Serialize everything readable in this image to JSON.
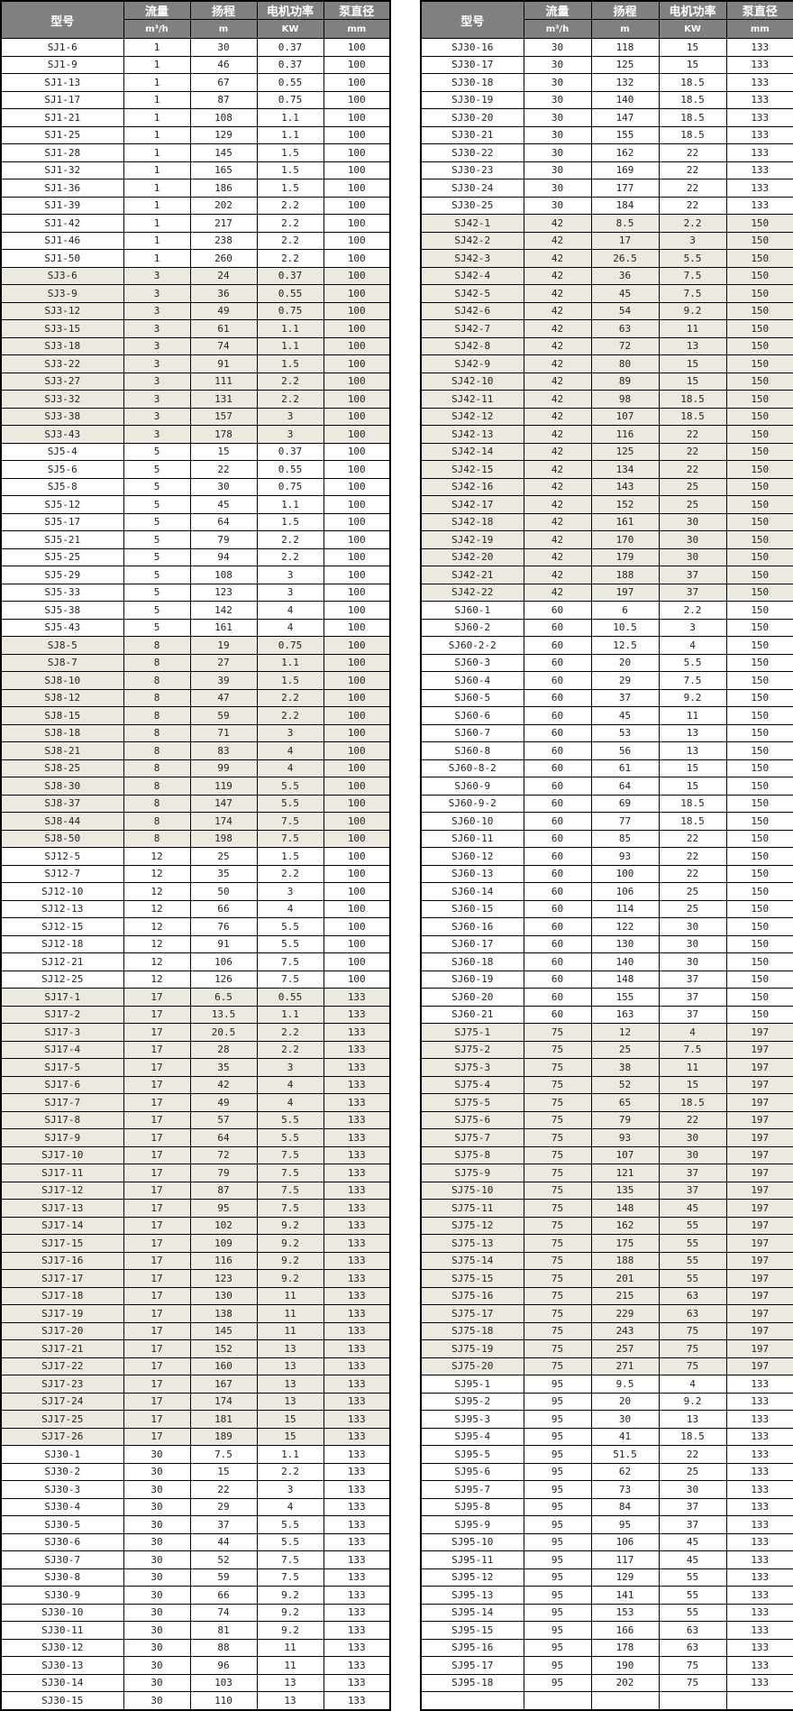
{
  "headers": {
    "model": "型号",
    "flow": "流量",
    "head": "扬程",
    "power": "电机功率",
    "diameter": "泵直径",
    "flow_unit": "m³/h",
    "head_unit": "m",
    "power_unit": "KW",
    "diameter_unit": "mm"
  },
  "colors": {
    "header_bg": "#808080",
    "highlight_row": "#ECEAE0",
    "plain_row": "#FFFFFF"
  },
  "highlight_series": [
    "SJ3",
    "SJ8",
    "SJ17",
    "SJ42",
    "SJ75"
  ],
  "left_rows": [
    [
      "SJ1-6",
      "1",
      "30",
      "0.37",
      "100"
    ],
    [
      "SJ1-9",
      "1",
      "46",
      "0.37",
      "100"
    ],
    [
      "SJ1-13",
      "1",
      "67",
      "0.55",
      "100"
    ],
    [
      "SJ1-17",
      "1",
      "87",
      "0.75",
      "100"
    ],
    [
      "SJ1-21",
      "1",
      "108",
      "1.1",
      "100"
    ],
    [
      "SJ1-25",
      "1",
      "129",
      "1.1",
      "100"
    ],
    [
      "SJ1-28",
      "1",
      "145",
      "1.5",
      "100"
    ],
    [
      "SJ1-32",
      "1",
      "165",
      "1.5",
      "100"
    ],
    [
      "SJ1-36",
      "1",
      "186",
      "1.5",
      "100"
    ],
    [
      "SJ1-39",
      "1",
      "202",
      "2.2",
      "100"
    ],
    [
      "SJ1-42",
      "1",
      "217",
      "2.2",
      "100"
    ],
    [
      "SJ1-46",
      "1",
      "238",
      "2.2",
      "100"
    ],
    [
      "SJ1-50",
      "1",
      "260",
      "2.2",
      "100"
    ],
    [
      "SJ3-6",
      "3",
      "24",
      "0.37",
      "100"
    ],
    [
      "SJ3-9",
      "3",
      "36",
      "0.55",
      "100"
    ],
    [
      "SJ3-12",
      "3",
      "49",
      "0.75",
      "100"
    ],
    [
      "SJ3-15",
      "3",
      "61",
      "1.1",
      "100"
    ],
    [
      "SJ3-18",
      "3",
      "74",
      "1.1",
      "100"
    ],
    [
      "SJ3-22",
      "3",
      "91",
      "1.5",
      "100"
    ],
    [
      "SJ3-27",
      "3",
      "111",
      "2.2",
      "100"
    ],
    [
      "SJ3-32",
      "3",
      "131",
      "2.2",
      "100"
    ],
    [
      "SJ3-38",
      "3",
      "157",
      "3",
      "100"
    ],
    [
      "SJ3-43",
      "3",
      "178",
      "3",
      "100"
    ],
    [
      "SJ5-4",
      "5",
      "15",
      "0.37",
      "100"
    ],
    [
      "SJ5-6",
      "5",
      "22",
      "0.55",
      "100"
    ],
    [
      "SJ5-8",
      "5",
      "30",
      "0.75",
      "100"
    ],
    [
      "SJ5-12",
      "5",
      "45",
      "1.1",
      "100"
    ],
    [
      "SJ5-17",
      "5",
      "64",
      "1.5",
      "100"
    ],
    [
      "SJ5-21",
      "5",
      "79",
      "2.2",
      "100"
    ],
    [
      "SJ5-25",
      "5",
      "94",
      "2.2",
      "100"
    ],
    [
      "SJ5-29",
      "5",
      "108",
      "3",
      "100"
    ],
    [
      "SJ5-33",
      "5",
      "123",
      "3",
      "100"
    ],
    [
      "SJ5-38",
      "5",
      "142",
      "4",
      "100"
    ],
    [
      "SJ5-43",
      "5",
      "161",
      "4",
      "100"
    ],
    [
      "SJ8-5",
      "8",
      "19",
      "0.75",
      "100"
    ],
    [
      "SJ8-7",
      "8",
      "27",
      "1.1",
      "100"
    ],
    [
      "SJ8-10",
      "8",
      "39",
      "1.5",
      "100"
    ],
    [
      "SJ8-12",
      "8",
      "47",
      "2.2",
      "100"
    ],
    [
      "SJ8-15",
      "8",
      "59",
      "2.2",
      "100"
    ],
    [
      "SJ8-18",
      "8",
      "71",
      "3",
      "100"
    ],
    [
      "SJ8-21",
      "8",
      "83",
      "4",
      "100"
    ],
    [
      "SJ8-25",
      "8",
      "99",
      "4",
      "100"
    ],
    [
      "SJ8-30",
      "8",
      "119",
      "5.5",
      "100"
    ],
    [
      "SJ8-37",
      "8",
      "147",
      "5.5",
      "100"
    ],
    [
      "SJ8-44",
      "8",
      "174",
      "7.5",
      "100"
    ],
    [
      "SJ8-50",
      "8",
      "198",
      "7.5",
      "100"
    ],
    [
      "SJ12-5",
      "12",
      "25",
      "1.5",
      "100"
    ],
    [
      "SJ12-7",
      "12",
      "35",
      "2.2",
      "100"
    ],
    [
      "SJ12-10",
      "12",
      "50",
      "3",
      "100"
    ],
    [
      "SJ12-13",
      "12",
      "66",
      "4",
      "100"
    ],
    [
      "SJ12-15",
      "12",
      "76",
      "5.5",
      "100"
    ],
    [
      "SJ12-18",
      "12",
      "91",
      "5.5",
      "100"
    ],
    [
      "SJ12-21",
      "12",
      "106",
      "7.5",
      "100"
    ],
    [
      "SJ12-25",
      "12",
      "126",
      "7.5",
      "100"
    ],
    [
      "SJ17-1",
      "17",
      "6.5",
      "0.55",
      "133"
    ],
    [
      "SJ17-2",
      "17",
      "13.5",
      "1.1",
      "133"
    ],
    [
      "SJ17-3",
      "17",
      "20.5",
      "2.2",
      "133"
    ],
    [
      "SJ17-4",
      "17",
      "28",
      "2.2",
      "133"
    ],
    [
      "SJ17-5",
      "17",
      "35",
      "3",
      "133"
    ],
    [
      "SJ17-6",
      "17",
      "42",
      "4",
      "133"
    ],
    [
      "SJ17-7",
      "17",
      "49",
      "4",
      "133"
    ],
    [
      "SJ17-8",
      "17",
      "57",
      "5.5",
      "133"
    ],
    [
      "SJ17-9",
      "17",
      "64",
      "5.5",
      "133"
    ],
    [
      "SJ17-10",
      "17",
      "72",
      "7.5",
      "133"
    ],
    [
      "SJ17-11",
      "17",
      "79",
      "7.5",
      "133"
    ],
    [
      "SJ17-12",
      "17",
      "87",
      "7.5",
      "133"
    ],
    [
      "SJ17-13",
      "17",
      "95",
      "7.5",
      "133"
    ],
    [
      "SJ17-14",
      "17",
      "102",
      "9.2",
      "133"
    ],
    [
      "SJ17-15",
      "17",
      "109",
      "9.2",
      "133"
    ],
    [
      "SJ17-16",
      "17",
      "116",
      "9.2",
      "133"
    ],
    [
      "SJ17-17",
      "17",
      "123",
      "9.2",
      "133"
    ],
    [
      "SJ17-18",
      "17",
      "130",
      "11",
      "133"
    ],
    [
      "SJ17-19",
      "17",
      "138",
      "11",
      "133"
    ],
    [
      "SJ17-20",
      "17",
      "145",
      "11",
      "133"
    ],
    [
      "SJ17-21",
      "17",
      "152",
      "13",
      "133"
    ],
    [
      "SJ17-22",
      "17",
      "160",
      "13",
      "133"
    ],
    [
      "SJ17-23",
      "17",
      "167",
      "13",
      "133"
    ],
    [
      "SJ17-24",
      "17",
      "174",
      "13",
      "133"
    ],
    [
      "SJ17-25",
      "17",
      "181",
      "15",
      "133"
    ],
    [
      "SJ17-26",
      "17",
      "189",
      "15",
      "133"
    ],
    [
      "SJ30-1",
      "30",
      "7.5",
      "1.1",
      "133"
    ],
    [
      "SJ30-2",
      "30",
      "15",
      "2.2",
      "133"
    ],
    [
      "SJ30-3",
      "30",
      "22",
      "3",
      "133"
    ],
    [
      "SJ30-4",
      "30",
      "29",
      "4",
      "133"
    ],
    [
      "SJ30-5",
      "30",
      "37",
      "5.5",
      "133"
    ],
    [
      "SJ30-6",
      "30",
      "44",
      "5.5",
      "133"
    ],
    [
      "SJ30-7",
      "30",
      "52",
      "7.5",
      "133"
    ],
    [
      "SJ30-8",
      "30",
      "59",
      "7.5",
      "133"
    ],
    [
      "SJ30-9",
      "30",
      "66",
      "9.2",
      "133"
    ],
    [
      "SJ30-10",
      "30",
      "74",
      "9.2",
      "133"
    ],
    [
      "SJ30-11",
      "30",
      "81",
      "9.2",
      "133"
    ],
    [
      "SJ30-12",
      "30",
      "88",
      "11",
      "133"
    ],
    [
      "SJ30-13",
      "30",
      "96",
      "11",
      "133"
    ],
    [
      "SJ30-14",
      "30",
      "103",
      "13",
      "133"
    ],
    [
      "SJ30-15",
      "30",
      "110",
      "13",
      "133"
    ]
  ],
  "right_rows": [
    [
      "SJ30-16",
      "30",
      "118",
      "15",
      "133"
    ],
    [
      "SJ30-17",
      "30",
      "125",
      "15",
      "133"
    ],
    [
      "SJ30-18",
      "30",
      "132",
      "18.5",
      "133"
    ],
    [
      "SJ30-19",
      "30",
      "140",
      "18.5",
      "133"
    ],
    [
      "SJ30-20",
      "30",
      "147",
      "18.5",
      "133"
    ],
    [
      "SJ30-21",
      "30",
      "155",
      "18.5",
      "133"
    ],
    [
      "SJ30-22",
      "30",
      "162",
      "22",
      "133"
    ],
    [
      "SJ30-23",
      "30",
      "169",
      "22",
      "133"
    ],
    [
      "SJ30-24",
      "30",
      "177",
      "22",
      "133"
    ],
    [
      "SJ30-25",
      "30",
      "184",
      "22",
      "133"
    ],
    [
      "SJ42-1",
      "42",
      "8.5",
      "2.2",
      "150"
    ],
    [
      "SJ42-2",
      "42",
      "17",
      "3",
      "150"
    ],
    [
      "SJ42-3",
      "42",
      "26.5",
      "5.5",
      "150"
    ],
    [
      "SJ42-4",
      "42",
      "36",
      "7.5",
      "150"
    ],
    [
      "SJ42-5",
      "42",
      "45",
      "7.5",
      "150"
    ],
    [
      "SJ42-6",
      "42",
      "54",
      "9.2",
      "150"
    ],
    [
      "SJ42-7",
      "42",
      "63",
      "11",
      "150"
    ],
    [
      "SJ42-8",
      "42",
      "72",
      "13",
      "150"
    ],
    [
      "SJ42-9",
      "42",
      "80",
      "15",
      "150"
    ],
    [
      "SJ42-10",
      "42",
      "89",
      "15",
      "150"
    ],
    [
      "SJ42-11",
      "42",
      "98",
      "18.5",
      "150"
    ],
    [
      "SJ42-12",
      "42",
      "107",
      "18.5",
      "150"
    ],
    [
      "SJ42-13",
      "42",
      "116",
      "22",
      "150"
    ],
    [
      "SJ42-14",
      "42",
      "125",
      "22",
      "150"
    ],
    [
      "SJ42-15",
      "42",
      "134",
      "22",
      "150"
    ],
    [
      "SJ42-16",
      "42",
      "143",
      "25",
      "150"
    ],
    [
      "SJ42-17",
      "42",
      "152",
      "25",
      "150"
    ],
    [
      "SJ42-18",
      "42",
      "161",
      "30",
      "150"
    ],
    [
      "SJ42-19",
      "42",
      "170",
      "30",
      "150"
    ],
    [
      "SJ42-20",
      "42",
      "179",
      "30",
      "150"
    ],
    [
      "SJ42-21",
      "42",
      "188",
      "37",
      "150"
    ],
    [
      "SJ42-22",
      "42",
      "197",
      "37",
      "150"
    ],
    [
      "SJ60-1",
      "60",
      "6",
      "2.2",
      "150"
    ],
    [
      "SJ60-2",
      "60",
      "10.5",
      "3",
      "150"
    ],
    [
      "SJ60-2-2",
      "60",
      "12.5",
      "4",
      "150"
    ],
    [
      "SJ60-3",
      "60",
      "20",
      "5.5",
      "150"
    ],
    [
      "SJ60-4",
      "60",
      "29",
      "7.5",
      "150"
    ],
    [
      "SJ60-5",
      "60",
      "37",
      "9.2",
      "150"
    ],
    [
      "SJ60-6",
      "60",
      "45",
      "11",
      "150"
    ],
    [
      "SJ60-7",
      "60",
      "53",
      "13",
      "150"
    ],
    [
      "SJ60-8",
      "60",
      "56",
      "13",
      "150"
    ],
    [
      "SJ60-8-2",
      "60",
      "61",
      "15",
      "150"
    ],
    [
      "SJ60-9",
      "60",
      "64",
      "15",
      "150"
    ],
    [
      "SJ60-9-2",
      "60",
      "69",
      "18.5",
      "150"
    ],
    [
      "SJ60-10",
      "60",
      "77",
      "18.5",
      "150"
    ],
    [
      "SJ60-11",
      "60",
      "85",
      "22",
      "150"
    ],
    [
      "SJ60-12",
      "60",
      "93",
      "22",
      "150"
    ],
    [
      "SJ60-13",
      "60",
      "100",
      "22",
      "150"
    ],
    [
      "SJ60-14",
      "60",
      "106",
      "25",
      "150"
    ],
    [
      "SJ60-15",
      "60",
      "114",
      "25",
      "150"
    ],
    [
      "SJ60-16",
      "60",
      "122",
      "30",
      "150"
    ],
    [
      "SJ60-17",
      "60",
      "130",
      "30",
      "150"
    ],
    [
      "SJ60-18",
      "60",
      "140",
      "30",
      "150"
    ],
    [
      "SJ60-19",
      "60",
      "148",
      "37",
      "150"
    ],
    [
      "SJ60-20",
      "60",
      "155",
      "37",
      "150"
    ],
    [
      "SJ60-21",
      "60",
      "163",
      "37",
      "150"
    ],
    [
      "SJ75-1",
      "75",
      "12",
      "4",
      "197"
    ],
    [
      "SJ75-2",
      "75",
      "25",
      "7.5",
      "197"
    ],
    [
      "SJ75-3",
      "75",
      "38",
      "11",
      "197"
    ],
    [
      "SJ75-4",
      "75",
      "52",
      "15",
      "197"
    ],
    [
      "SJ75-5",
      "75",
      "65",
      "18.5",
      "197"
    ],
    [
      "SJ75-6",
      "75",
      "79",
      "22",
      "197"
    ],
    [
      "SJ75-7",
      "75",
      "93",
      "30",
      "197"
    ],
    [
      "SJ75-8",
      "75",
      "107",
      "30",
      "197"
    ],
    [
      "SJ75-9",
      "75",
      "121",
      "37",
      "197"
    ],
    [
      "SJ75-10",
      "75",
      "135",
      "37",
      "197"
    ],
    [
      "SJ75-11",
      "75",
      "148",
      "45",
      "197"
    ],
    [
      "SJ75-12",
      "75",
      "162",
      "55",
      "197"
    ],
    [
      "SJ75-13",
      "75",
      "175",
      "55",
      "197"
    ],
    [
      "SJ75-14",
      "75",
      "188",
      "55",
      "197"
    ],
    [
      "SJ75-15",
      "75",
      "201",
      "55",
      "197"
    ],
    [
      "SJ75-16",
      "75",
      "215",
      "63",
      "197"
    ],
    [
      "SJ75-17",
      "75",
      "229",
      "63",
      "197"
    ],
    [
      "SJ75-18",
      "75",
      "243",
      "75",
      "197"
    ],
    [
      "SJ75-19",
      "75",
      "257",
      "75",
      "197"
    ],
    [
      "SJ75-20",
      "75",
      "271",
      "75",
      "197"
    ],
    [
      "SJ95-1",
      "95",
      "9.5",
      "4",
      "133"
    ],
    [
      "SJ95-2",
      "95",
      "20",
      "9.2",
      "133"
    ],
    [
      "SJ95-3",
      "95",
      "30",
      "13",
      "133"
    ],
    [
      "SJ95-4",
      "95",
      "41",
      "18.5",
      "133"
    ],
    [
      "SJ95-5",
      "95",
      "51.5",
      "22",
      "133"
    ],
    [
      "SJ95-6",
      "95",
      "62",
      "25",
      "133"
    ],
    [
      "SJ95-7",
      "95",
      "73",
      "30",
      "133"
    ],
    [
      "SJ95-8",
      "95",
      "84",
      "37",
      "133"
    ],
    [
      "SJ95-9",
      "95",
      "95",
      "37",
      "133"
    ],
    [
      "SJ95-10",
      "95",
      "106",
      "45",
      "133"
    ],
    [
      "SJ95-11",
      "95",
      "117",
      "45",
      "133"
    ],
    [
      "SJ95-12",
      "95",
      "129",
      "55",
      "133"
    ],
    [
      "SJ95-13",
      "95",
      "141",
      "55",
      "133"
    ],
    [
      "SJ95-14",
      "95",
      "153",
      "55",
      "133"
    ],
    [
      "SJ95-15",
      "95",
      "166",
      "63",
      "133"
    ],
    [
      "SJ95-16",
      "95",
      "178",
      "63",
      "133"
    ],
    [
      "SJ95-17",
      "95",
      "190",
      "75",
      "133"
    ],
    [
      "SJ95-18",
      "95",
      "202",
      "75",
      "133"
    ],
    [
      "",
      "",
      "",
      "",
      ""
    ]
  ]
}
